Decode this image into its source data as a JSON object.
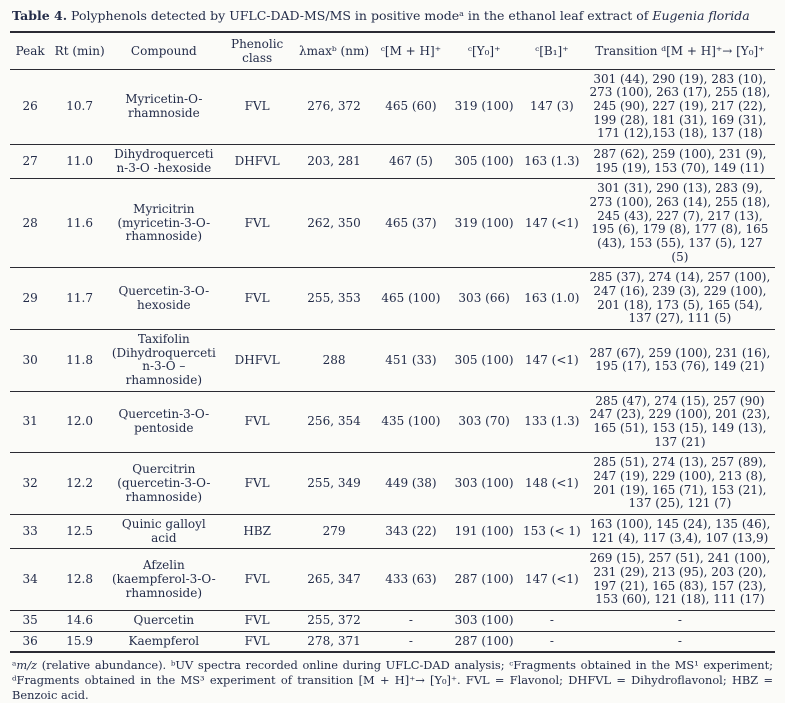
{
  "title": {
    "prefix": "Table 4.",
    "body": " Polyphenols detected by UFLC-DAD-MS/MS in positive modeᵃ in the ethanol leaf extract of ",
    "species": "Eugenia florida"
  },
  "table": {
    "columns": [
      {
        "key": "peak",
        "label": "Peak"
      },
      {
        "key": "rt",
        "label": "Rt (min)"
      },
      {
        "key": "compound",
        "label": "Compound"
      },
      {
        "key": "phenolic_class",
        "label": "Phenolic class"
      },
      {
        "key": "lambda_max",
        "label": "λmaxᵇ (nm)"
      },
      {
        "key": "mh",
        "label": "ᶜ[M + H]⁺"
      },
      {
        "key": "y0",
        "label": "ᶜ[Y₀]⁺"
      },
      {
        "key": "b1",
        "label": "ᶜ[B₁]⁺"
      },
      {
        "key": "transition",
        "label": "Transition ᵈ[M + H]⁺→ [Y₀]⁺"
      }
    ],
    "rows": [
      {
        "peak": "26",
        "rt": "10.7",
        "compound": "Myricetin-O-rhamnoside",
        "phenolic_class": "FVL",
        "lambda_max": "276, 372",
        "mh": "465 (60)",
        "y0": "319 (100)",
        "b1": "147 (3)",
        "transition": "301 (44), 290 (19), 283 (10), 273 (100), 263 (17), 255 (18), 245 (90), 227 (19), 217 (22), 199 (28), 181 (31), 169 (31), 171 (12),153 (18), 137 (18)"
      },
      {
        "peak": "27",
        "rt": "11.0",
        "compound": "Dihydroquercetin-3-O -hexoside",
        "phenolic_class": "DHFVL",
        "lambda_max": "203, 281",
        "mh": "467 (5)",
        "y0": "305 (100)",
        "b1": "163 (1.3)",
        "transition": "287 (62), 259 (100), 231 (9), 195 (19), 153 (70), 149 (11)"
      },
      {
        "peak": "28",
        "rt": "11.6",
        "compound": "Myricitrin (myricetin-3-O-rhamnoside)",
        "phenolic_class": "FVL",
        "lambda_max": "262, 350",
        "mh": "465 (37)",
        "y0": "319 (100)",
        "b1": "147 (<1)",
        "transition": "301 (31), 290 (13), 283 (9), 273 (100), 263 (14), 255 (18), 245 (43), 227 (7), 217 (13), 195 (6), 179 (8), 177 (8), 165 (43), 153 (55), 137 (5), 127 (5)"
      },
      {
        "peak": "29",
        "rt": "11.7",
        "compound": "Quercetin-3-O-hexoside",
        "phenolic_class": "FVL",
        "lambda_max": "255, 353",
        "mh": "465 (100)",
        "y0": "303 (66)",
        "b1": "163 (1.0)",
        "transition": "285 (37), 274 (14), 257 (100), 247 (16), 239 (3), 229 (100), 201 (18), 173 (5), 165 (54), 137 (27), 111 (5)"
      },
      {
        "peak": "30",
        "rt": "11.8",
        "compound": "Taxifolin (Dihydroquercetin-3-O – rhamnoside)",
        "phenolic_class": "DHFVL",
        "lambda_max": "288",
        "mh": "451 (33)",
        "y0": "305 (100)",
        "b1": "147 (<1)",
        "transition": "287 (67), 259 (100), 231 (16), 195 (17), 153 (76), 149 (21)"
      },
      {
        "peak": "31",
        "rt": "12.0",
        "compound": "Quercetin-3-O-pentoside",
        "phenolic_class": "FVL",
        "lambda_max": "256, 354",
        "mh": "435 (100)",
        "y0": "303 (70)",
        "b1": "133 (1.3)",
        "transition": "285 (47), 274 (15), 257 (90) 247 (23), 229 (100), 201 (23), 165 (51), 153 (15), 149 (13), 137 (21)"
      },
      {
        "peak": "32",
        "rt": "12.2",
        "compound": "Quercitrin (quercetin-3-O-rhamnoside)",
        "phenolic_class": "FVL",
        "lambda_max": "255, 349",
        "mh": "449 (38)",
        "y0": "303 (100)",
        "b1": "148 (<1)",
        "transition": "285 (51), 274 (13), 257 (89), 247 (19), 229 (100), 213 (8), 201 (19), 165 (71), 153 (21), 137 (25), 121 (7)"
      },
      {
        "peak": "33",
        "rt": "12.5",
        "compound": "Quinic galloyl acid",
        "phenolic_class": "HBZ",
        "lambda_max": "279",
        "mh": "343 (22)",
        "y0": "191 (100)",
        "b1": "153 (< 1)",
        "transition": "163 (100), 145 (24), 135 (46), 121 (4), 117 (3,4), 107 (13,9)"
      },
      {
        "peak": "34",
        "rt": "12.8",
        "compound": "Afzelin (kaempferol-3-O-rhamnoside)",
        "phenolic_class": "FVL",
        "lambda_max": "265, 347",
        "mh": "433 (63)",
        "y0": "287 (100)",
        "b1": "147 (<1)",
        "transition": "269 (15), 257 (51), 241 (100), 231 (29), 213 (95), 203 (20), 197 (21), 165 (83), 157 (23), 153 (60), 121 (18), 111 (17)"
      },
      {
        "peak": "35",
        "rt": "14.6",
        "compound": "Quercetin",
        "phenolic_class": "FVL",
        "lambda_max": "255, 372",
        "mh": "-",
        "y0": "303 (100)",
        "b1": "-",
        "transition": "-"
      },
      {
        "peak": "36",
        "rt": "15.9",
        "compound": "Kaempferol",
        "phenolic_class": "FVL",
        "lambda_max": "278, 371",
        "mh": "-",
        "y0": "287 (100)",
        "b1": "-",
        "transition": "-"
      }
    ]
  },
  "footnote": {
    "sup_a": "ᵃ",
    "mz": "m/z",
    "rest": " (relative abundance). ᵇUV spectra recorded online during UFLC-DAD analysis; ᶜFragments obtained in the MS¹ experiment; ᵈFragments obtained in the MS³ experiment of transition [M + H]⁺→ [Y₀]⁺. FVL = Flavonol; DHFVL = Dihydroflavonol; HBZ = Benzoic acid."
  }
}
